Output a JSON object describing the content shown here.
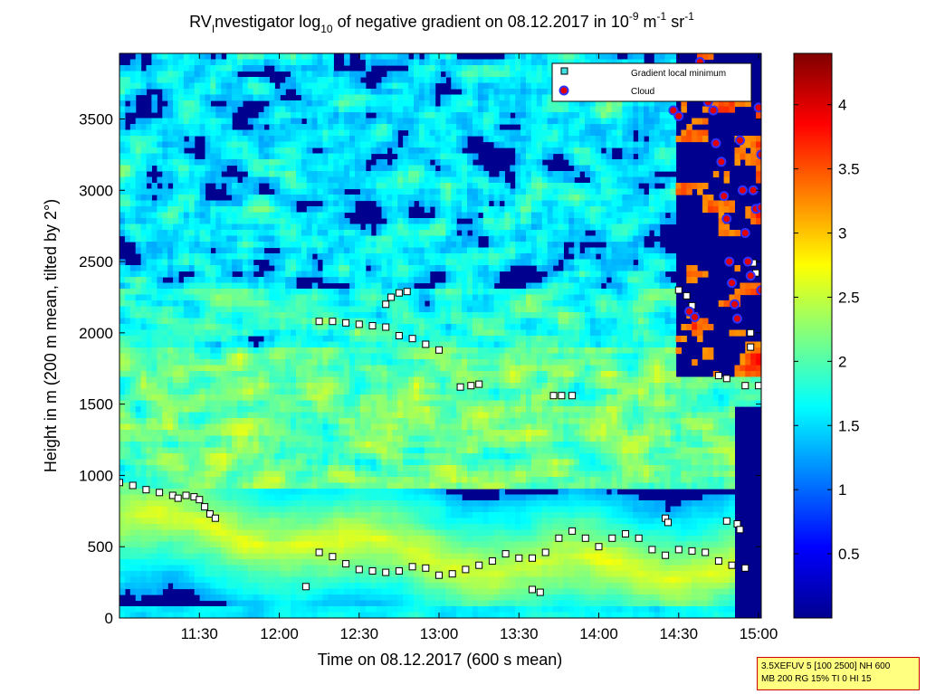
{
  "chart_data": {
    "type": "heatmap",
    "title": {
      "text": "RV₁nvestigator log₁₀ of negative gradient on 08.12.2017 in 10⁻⁹ m⁻¹ sr⁻¹",
      "parts": [
        "RV",
        "I",
        "nvestigator log",
        "10",
        " of negative gradient on 08.12.2017 in 10",
        "-9",
        " m",
        "-1",
        " sr",
        "-1"
      ]
    },
    "xlabel": "Time on 08.12.2017 (600 s mean)",
    "ylabel": "Height in m (200 m mean, tilted by 2°)",
    "xlim": [
      "11:00",
      "15:01"
    ],
    "ylim": [
      0,
      3960
    ],
    "x_ticks": [
      "11:30",
      "12:00",
      "12:30",
      "13:00",
      "13:30",
      "14:00",
      "14:30",
      "15:00"
    ],
    "y_ticks": [
      0,
      500,
      1000,
      1500,
      2000,
      2500,
      3000,
      3500
    ],
    "colorbar": {
      "colormap": "jet",
      "range": [
        0,
        4.4
      ],
      "ticks": [
        0.5,
        1,
        1.5,
        2,
        2.5,
        3,
        3.5,
        4
      ]
    },
    "legend": {
      "position": "top-right",
      "entries": [
        {
          "label": "Gradient local minimum",
          "marker": "square",
          "color": "#40e0e0"
        },
        {
          "label": "Cloud",
          "marker": "circle",
          "color": "#e00000",
          "edge": "#3030ff"
        }
      ]
    },
    "series": [
      {
        "name": "Gradient local minimum",
        "points": [
          [
            "11:00",
            950
          ],
          [
            "11:05",
            930
          ],
          [
            "11:10",
            900
          ],
          [
            "11:15",
            880
          ],
          [
            "11:20",
            860
          ],
          [
            "11:22",
            840
          ],
          [
            "11:25",
            860
          ],
          [
            "11:28",
            850
          ],
          [
            "11:30",
            830
          ],
          [
            "11:32",
            780
          ],
          [
            "11:34",
            730
          ],
          [
            "11:36",
            700
          ],
          [
            "12:15",
            460
          ],
          [
            "12:20",
            430
          ],
          [
            "12:25",
            380
          ],
          [
            "12:30",
            340
          ],
          [
            "12:35",
            330
          ],
          [
            "12:40",
            320
          ],
          [
            "12:45",
            330
          ],
          [
            "12:50",
            360
          ],
          [
            "12:55",
            350
          ],
          [
            "13:00",
            300
          ],
          [
            "13:05",
            310
          ],
          [
            "13:10",
            340
          ],
          [
            "13:15",
            370
          ],
          [
            "13:20",
            400
          ],
          [
            "13:25",
            450
          ],
          [
            "13:30",
            420
          ],
          [
            "13:35",
            420
          ],
          [
            "13:40",
            460
          ],
          [
            "13:45",
            560
          ],
          [
            "13:50",
            610
          ],
          [
            "13:55",
            560
          ],
          [
            "14:00",
            500
          ],
          [
            "14:05",
            560
          ],
          [
            "14:10",
            590
          ],
          [
            "14:15",
            560
          ],
          [
            "14:20",
            480
          ],
          [
            "14:25",
            440
          ],
          [
            "14:30",
            480
          ],
          [
            "14:35",
            470
          ],
          [
            "14:40",
            460
          ],
          [
            "14:45",
            400
          ],
          [
            "14:50",
            370
          ],
          [
            "14:55",
            350
          ],
          [
            "12:15",
            2080
          ],
          [
            "12:20",
            2080
          ],
          [
            "12:25",
            2070
          ],
          [
            "12:30",
            2060
          ],
          [
            "12:35",
            2050
          ],
          [
            "12:40",
            2040
          ],
          [
            "12:45",
            1980
          ],
          [
            "12:50",
            1960
          ],
          [
            "12:55",
            1920
          ],
          [
            "13:00",
            1880
          ],
          [
            "12:40",
            2200
          ],
          [
            "12:42",
            2250
          ],
          [
            "12:45",
            2280
          ],
          [
            "12:48",
            2290
          ],
          [
            "13:08",
            1620
          ],
          [
            "13:12",
            1630
          ],
          [
            "13:15",
            1640
          ],
          [
            "13:43",
            1560
          ],
          [
            "13:46",
            1560
          ],
          [
            "13:50",
            1560
          ],
          [
            "12:10",
            220
          ],
          [
            "13:35",
            200
          ],
          [
            "13:38",
            180
          ],
          [
            "14:25",
            700
          ],
          [
            "14:26",
            670
          ],
          [
            "14:48",
            680
          ],
          [
            "14:52",
            660
          ],
          [
            "14:53",
            620
          ],
          [
            "14:30",
            2300
          ],
          [
            "14:33",
            2260
          ],
          [
            "14:35",
            2190
          ],
          [
            "14:45",
            1700
          ],
          [
            "14:48",
            1680
          ],
          [
            "14:55",
            1630
          ],
          [
            "15:00",
            1630
          ],
          [
            "14:57",
            1900
          ],
          [
            "14:57",
            2000
          ],
          [
            "14:58",
            2490
          ],
          [
            "14:59",
            2420
          ]
        ]
      },
      {
        "name": "Cloud",
        "points": [
          [
            "14:28",
            3560
          ],
          [
            "14:30",
            3520
          ],
          [
            "14:34",
            2150
          ],
          [
            "14:36",
            2110
          ],
          [
            "14:38",
            3900
          ],
          [
            "14:41",
            3620
          ],
          [
            "14:43",
            3560
          ],
          [
            "14:44",
            3330
          ],
          [
            "14:46",
            3200
          ],
          [
            "14:47",
            2960
          ],
          [
            "14:48",
            2800
          ],
          [
            "14:49",
            2500
          ],
          [
            "14:50",
            2350
          ],
          [
            "14:51",
            2200
          ],
          [
            "14:52",
            2100
          ],
          [
            "14:53",
            3350
          ],
          [
            "14:54",
            3000
          ],
          [
            "14:55",
            2700
          ],
          [
            "14:56",
            2500
          ],
          [
            "14:57",
            2400
          ],
          [
            "14:58",
            3000
          ],
          [
            "14:59",
            2870
          ],
          [
            "15:00",
            3580
          ],
          [
            "15:01",
            3250
          ],
          [
            "15:01",
            2880
          ],
          [
            "15:01",
            2300
          ]
        ]
      }
    ]
  },
  "info": {
    "line1": "3.5XEFUV 5 [100 2500] NH 600",
    "line2": "MB 200 RG 15% TI 0 HI 15"
  }
}
